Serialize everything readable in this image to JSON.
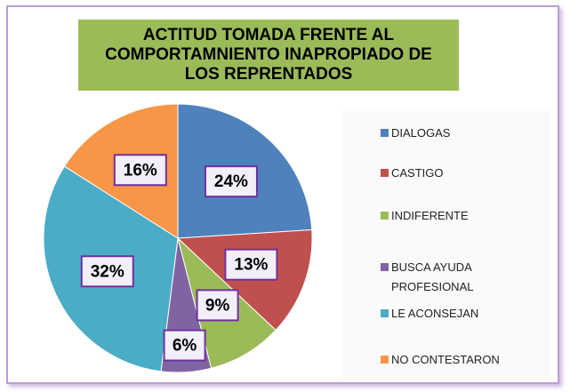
{
  "chart_data": {
    "type": "pie",
    "title": "ACTITUD TOMADA FRENTE AL COMPORTAMNIENTO INAPROPIADO DE LOS REPRENTADOS",
    "categories": [
      "DIALOGAS",
      "CASTIGO",
      "INDIFERENTE",
      "BUSCA AYUDA PROFESIONAL",
      "LE ACONSEJAN",
      "NO CONTESTARON"
    ],
    "values": [
      24,
      13,
      9,
      6,
      32,
      16
    ],
    "value_labels": [
      "24%",
      "13%",
      "9%",
      "6%",
      "32%",
      "16%"
    ],
    "colors": [
      "#4f81bd",
      "#c0504d",
      "#9bbb59",
      "#8064a2",
      "#4bacc6",
      "#f79646"
    ],
    "legend": "right"
  }
}
